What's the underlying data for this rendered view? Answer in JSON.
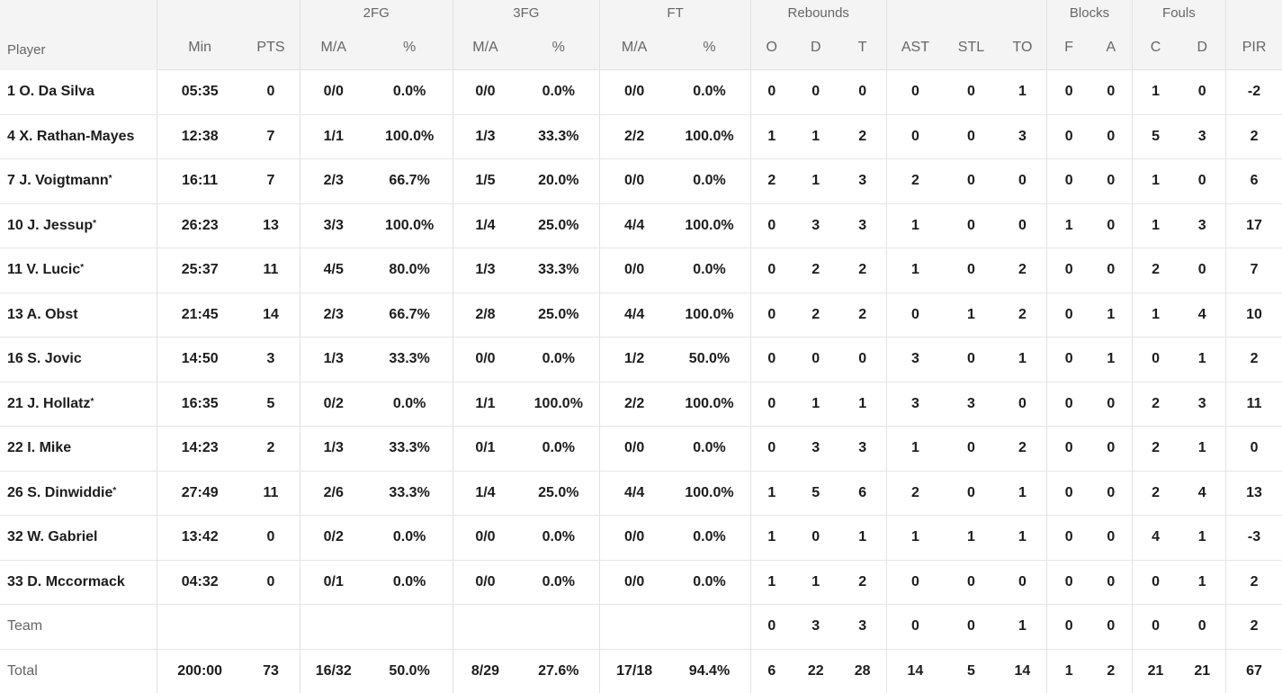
{
  "groups": {
    "fg2": "2FG",
    "fg3": "3FG",
    "ft": "FT",
    "rebounds": "Rebounds",
    "blocks": "Blocks",
    "fouls": "Fouls"
  },
  "columns": {
    "player": "Player",
    "min": "Min",
    "pts": "PTS",
    "fg2_ma": "M/A",
    "fg2_pct": "%",
    "fg3_ma": "M/A",
    "fg3_pct": "%",
    "ft_ma": "M/A",
    "ft_pct": "%",
    "reb_o": "O",
    "reb_d": "D",
    "reb_t": "T",
    "ast": "AST",
    "stl": "STL",
    "to": "TO",
    "blk_f": "F",
    "blk_a": "A",
    "foul_c": "C",
    "foul_d": "D",
    "pir": "PIR"
  },
  "rows": [
    {
      "player": "1 O. Da Silva",
      "starter": "",
      "min": "05:35",
      "pts": "0",
      "fg2_ma": "0/0",
      "fg2_pct": "0.0%",
      "fg3_ma": "0/0",
      "fg3_pct": "0.0%",
      "ft_ma": "0/0",
      "ft_pct": "0.0%",
      "reb_o": "0",
      "reb_d": "0",
      "reb_t": "0",
      "ast": "0",
      "stl": "0",
      "to": "1",
      "blk_f": "0",
      "blk_a": "0",
      "foul_c": "1",
      "foul_d": "0",
      "pir": "-2"
    },
    {
      "player": "4 X. Rathan-Mayes",
      "starter": "",
      "min": "12:38",
      "pts": "7",
      "fg2_ma": "1/1",
      "fg2_pct": "100.0%",
      "fg3_ma": "1/3",
      "fg3_pct": "33.3%",
      "ft_ma": "2/2",
      "ft_pct": "100.0%",
      "reb_o": "1",
      "reb_d": "1",
      "reb_t": "2",
      "ast": "0",
      "stl": "0",
      "to": "3",
      "blk_f": "0",
      "blk_a": "0",
      "foul_c": "5",
      "foul_d": "3",
      "pir": "2"
    },
    {
      "player": "7 J. Voigtmann",
      "starter": "*",
      "min": "16:11",
      "pts": "7",
      "fg2_ma": "2/3",
      "fg2_pct": "66.7%",
      "fg3_ma": "1/5",
      "fg3_pct": "20.0%",
      "ft_ma": "0/0",
      "ft_pct": "0.0%",
      "reb_o": "2",
      "reb_d": "1",
      "reb_t": "3",
      "ast": "2",
      "stl": "0",
      "to": "0",
      "blk_f": "0",
      "blk_a": "0",
      "foul_c": "1",
      "foul_d": "0",
      "pir": "6"
    },
    {
      "player": "10 J. Jessup",
      "starter": "*",
      "min": "26:23",
      "pts": "13",
      "fg2_ma": "3/3",
      "fg2_pct": "100.0%",
      "fg3_ma": "1/4",
      "fg3_pct": "25.0%",
      "ft_ma": "4/4",
      "ft_pct": "100.0%",
      "reb_o": "0",
      "reb_d": "3",
      "reb_t": "3",
      "ast": "1",
      "stl": "0",
      "to": "0",
      "blk_f": "1",
      "blk_a": "0",
      "foul_c": "1",
      "foul_d": "3",
      "pir": "17"
    },
    {
      "player": "11 V. Lucic",
      "starter": "*",
      "min": "25:37",
      "pts": "11",
      "fg2_ma": "4/5",
      "fg2_pct": "80.0%",
      "fg3_ma": "1/3",
      "fg3_pct": "33.3%",
      "ft_ma": "0/0",
      "ft_pct": "0.0%",
      "reb_o": "0",
      "reb_d": "2",
      "reb_t": "2",
      "ast": "1",
      "stl": "0",
      "to": "2",
      "blk_f": "0",
      "blk_a": "0",
      "foul_c": "2",
      "foul_d": "0",
      "pir": "7"
    },
    {
      "player": "13 A. Obst",
      "starter": "",
      "min": "21:45",
      "pts": "14",
      "fg2_ma": "2/3",
      "fg2_pct": "66.7%",
      "fg3_ma": "2/8",
      "fg3_pct": "25.0%",
      "ft_ma": "4/4",
      "ft_pct": "100.0%",
      "reb_o": "0",
      "reb_d": "2",
      "reb_t": "2",
      "ast": "0",
      "stl": "1",
      "to": "2",
      "blk_f": "0",
      "blk_a": "1",
      "foul_c": "1",
      "foul_d": "4",
      "pir": "10"
    },
    {
      "player": "16 S. Jovic",
      "starter": "",
      "min": "14:50",
      "pts": "3",
      "fg2_ma": "1/3",
      "fg2_pct": "33.3%",
      "fg3_ma": "0/0",
      "fg3_pct": "0.0%",
      "ft_ma": "1/2",
      "ft_pct": "50.0%",
      "reb_o": "0",
      "reb_d": "0",
      "reb_t": "0",
      "ast": "3",
      "stl": "0",
      "to": "1",
      "blk_f": "0",
      "blk_a": "1",
      "foul_c": "0",
      "foul_d": "1",
      "pir": "2"
    },
    {
      "player": "21 J. Hollatz",
      "starter": "*",
      "min": "16:35",
      "pts": "5",
      "fg2_ma": "0/2",
      "fg2_pct": "0.0%",
      "fg3_ma": "1/1",
      "fg3_pct": "100.0%",
      "ft_ma": "2/2",
      "ft_pct": "100.0%",
      "reb_o": "0",
      "reb_d": "1",
      "reb_t": "1",
      "ast": "3",
      "stl": "3",
      "to": "0",
      "blk_f": "0",
      "blk_a": "0",
      "foul_c": "2",
      "foul_d": "3",
      "pir": "11"
    },
    {
      "player": "22 I. Mike",
      "starter": "",
      "min": "14:23",
      "pts": "2",
      "fg2_ma": "1/3",
      "fg2_pct": "33.3%",
      "fg3_ma": "0/1",
      "fg3_pct": "0.0%",
      "ft_ma": "0/0",
      "ft_pct": "0.0%",
      "reb_o": "0",
      "reb_d": "3",
      "reb_t": "3",
      "ast": "1",
      "stl": "0",
      "to": "2",
      "blk_f": "0",
      "blk_a": "0",
      "foul_c": "2",
      "foul_d": "1",
      "pir": "0"
    },
    {
      "player": "26 S. Dinwiddie",
      "starter": "*",
      "min": "27:49",
      "pts": "11",
      "fg2_ma": "2/6",
      "fg2_pct": "33.3%",
      "fg3_ma": "1/4",
      "fg3_pct": "25.0%",
      "ft_ma": "4/4",
      "ft_pct": "100.0%",
      "reb_o": "1",
      "reb_d": "5",
      "reb_t": "6",
      "ast": "2",
      "stl": "0",
      "to": "1",
      "blk_f": "0",
      "blk_a": "0",
      "foul_c": "2",
      "foul_d": "4",
      "pir": "13"
    },
    {
      "player": "32 W. Gabriel",
      "starter": "",
      "min": "13:42",
      "pts": "0",
      "fg2_ma": "0/2",
      "fg2_pct": "0.0%",
      "fg3_ma": "0/0",
      "fg3_pct": "0.0%",
      "ft_ma": "0/0",
      "ft_pct": "0.0%",
      "reb_o": "1",
      "reb_d": "0",
      "reb_t": "1",
      "ast": "1",
      "stl": "1",
      "to": "1",
      "blk_f": "0",
      "blk_a": "0",
      "foul_c": "4",
      "foul_d": "1",
      "pir": "-3"
    },
    {
      "player": "33 D. Mccormack",
      "starter": "",
      "min": "04:32",
      "pts": "0",
      "fg2_ma": "0/1",
      "fg2_pct": "0.0%",
      "fg3_ma": "0/0",
      "fg3_pct": "0.0%",
      "ft_ma": "0/0",
      "ft_pct": "0.0%",
      "reb_o": "1",
      "reb_d": "1",
      "reb_t": "2",
      "ast": "0",
      "stl": "0",
      "to": "0",
      "blk_f": "0",
      "blk_a": "0",
      "foul_c": "0",
      "foul_d": "1",
      "pir": "2"
    }
  ],
  "team_row": {
    "player": "Team",
    "min": "",
    "pts": "",
    "fg2_ma": "",
    "fg2_pct": "",
    "fg3_ma": "",
    "fg3_pct": "",
    "ft_ma": "",
    "ft_pct": "",
    "reb_o": "0",
    "reb_d": "3",
    "reb_t": "3",
    "ast": "0",
    "stl": "0",
    "to": "1",
    "blk_f": "0",
    "blk_a": "0",
    "foul_c": "0",
    "foul_d": "0",
    "pir": "2"
  },
  "total_row": {
    "player": "Total",
    "min": "200:00",
    "pts": "73",
    "fg2_ma": "16/32",
    "fg2_pct": "50.0%",
    "fg3_ma": "8/29",
    "fg3_pct": "27.6%",
    "ft_ma": "17/18",
    "ft_pct": "94.4%",
    "reb_o": "6",
    "reb_d": "22",
    "reb_t": "28",
    "ast": "14",
    "stl": "5",
    "to": "14",
    "blk_f": "1",
    "blk_a": "2",
    "foul_c": "21",
    "foul_d": "21",
    "pir": "67"
  }
}
